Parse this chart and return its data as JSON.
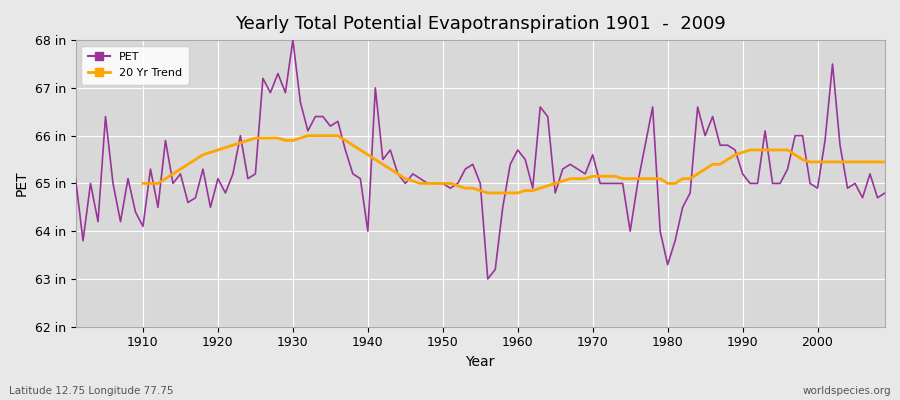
{
  "title": "Yearly Total Potential Evapotranspiration 1901  -  2009",
  "xlabel": "Year",
  "ylabel": "PET",
  "subtitle_left": "Latitude 12.75 Longitude 77.75",
  "subtitle_right": "worldspecies.org",
  "ylim": [
    62,
    68
  ],
  "ytick_labels": [
    "62 in",
    "63 in",
    "64 in",
    "65 in",
    "66 in",
    "67 in",
    "68 in"
  ],
  "ytick_values": [
    62,
    63,
    64,
    65,
    66,
    67,
    68
  ],
  "pet_color": "#993399",
  "trend_color": "#FFA500",
  "bg_color": "#e8e8e8",
  "plot_bg_color": "#d8d8d8",
  "grid_color": "#ffffff",
  "years": [
    1901,
    1902,
    1903,
    1904,
    1905,
    1906,
    1907,
    1908,
    1909,
    1910,
    1911,
    1912,
    1913,
    1914,
    1915,
    1916,
    1917,
    1918,
    1919,
    1920,
    1921,
    1922,
    1923,
    1924,
    1925,
    1926,
    1927,
    1928,
    1929,
    1930,
    1931,
    1932,
    1933,
    1934,
    1935,
    1936,
    1937,
    1938,
    1939,
    1940,
    1941,
    1942,
    1943,
    1944,
    1945,
    1946,
    1947,
    1948,
    1949,
    1950,
    1951,
    1952,
    1953,
    1954,
    1955,
    1956,
    1957,
    1958,
    1959,
    1960,
    1961,
    1962,
    1963,
    1964,
    1965,
    1966,
    1967,
    1968,
    1969,
    1970,
    1971,
    1972,
    1973,
    1974,
    1975,
    1976,
    1977,
    1978,
    1979,
    1980,
    1981,
    1982,
    1983,
    1984,
    1985,
    1986,
    1987,
    1988,
    1989,
    1990,
    1991,
    1992,
    1993,
    1994,
    1995,
    1996,
    1997,
    1998,
    1999,
    2000,
    2001,
    2002,
    2003,
    2004,
    2005,
    2006,
    2007,
    2008,
    2009
  ],
  "pet_values": [
    65.1,
    63.8,
    65.0,
    64.2,
    66.4,
    65.0,
    64.2,
    65.1,
    64.4,
    64.1,
    65.3,
    64.5,
    65.9,
    65.0,
    65.2,
    64.6,
    64.7,
    65.3,
    64.5,
    65.1,
    64.8,
    65.2,
    66.0,
    65.1,
    65.2,
    67.2,
    66.9,
    67.3,
    66.9,
    68.0,
    66.7,
    66.1,
    66.4,
    66.4,
    66.2,
    66.3,
    65.7,
    65.2,
    65.1,
    64.0,
    67.0,
    65.5,
    65.7,
    65.2,
    65.0,
    65.2,
    65.1,
    65.0,
    65.0,
    65.0,
    64.9,
    65.0,
    65.3,
    65.4,
    65.0,
    63.0,
    63.2,
    64.5,
    65.4,
    65.7,
    65.5,
    64.9,
    66.6,
    66.4,
    64.8,
    65.3,
    65.4,
    65.3,
    65.2,
    65.6,
    65.0,
    65.0,
    65.0,
    65.0,
    64.0,
    65.0,
    65.8,
    66.6,
    64.0,
    63.3,
    63.8,
    64.5,
    64.8,
    66.6,
    66.0,
    66.4,
    65.8,
    65.8,
    65.7,
    65.2,
    65.0,
    65.0,
    66.1,
    65.0,
    65.0,
    65.3,
    66.0,
    66.0,
    65.0,
    64.9,
    65.9,
    67.5,
    65.8,
    64.9,
    65.0,
    64.7,
    65.2,
    64.7,
    64.8
  ],
  "trend_values": [
    null,
    null,
    null,
    null,
    null,
    null,
    null,
    null,
    null,
    65.0,
    65.0,
    65.0,
    65.1,
    65.2,
    65.3,
    65.4,
    65.5,
    65.6,
    65.65,
    65.7,
    65.75,
    65.8,
    65.85,
    65.9,
    65.95,
    65.95,
    65.95,
    65.95,
    65.9,
    65.9,
    65.95,
    66.0,
    66.0,
    66.0,
    66.0,
    66.0,
    65.9,
    65.8,
    65.7,
    65.6,
    65.5,
    65.4,
    65.3,
    65.2,
    65.1,
    65.05,
    65.0,
    65.0,
    65.0,
    65.0,
    65.0,
    64.95,
    64.9,
    64.9,
    64.85,
    64.8,
    64.8,
    64.8,
    64.8,
    64.8,
    64.85,
    64.85,
    64.9,
    64.95,
    65.0,
    65.05,
    65.1,
    65.1,
    65.1,
    65.15,
    65.15,
    65.15,
    65.15,
    65.1,
    65.1,
    65.1,
    65.1,
    65.1,
    65.1,
    65.0,
    65.0,
    65.1,
    65.1,
    65.2,
    65.3,
    65.4,
    65.4,
    65.5,
    65.6,
    65.65,
    65.7,
    65.7,
    65.7,
    65.7,
    65.7,
    65.7,
    65.6,
    65.5,
    65.45,
    65.45,
    65.45,
    65.45,
    65.45,
    65.45,
    65.45,
    65.45,
    65.45,
    65.45,
    65.45
  ]
}
